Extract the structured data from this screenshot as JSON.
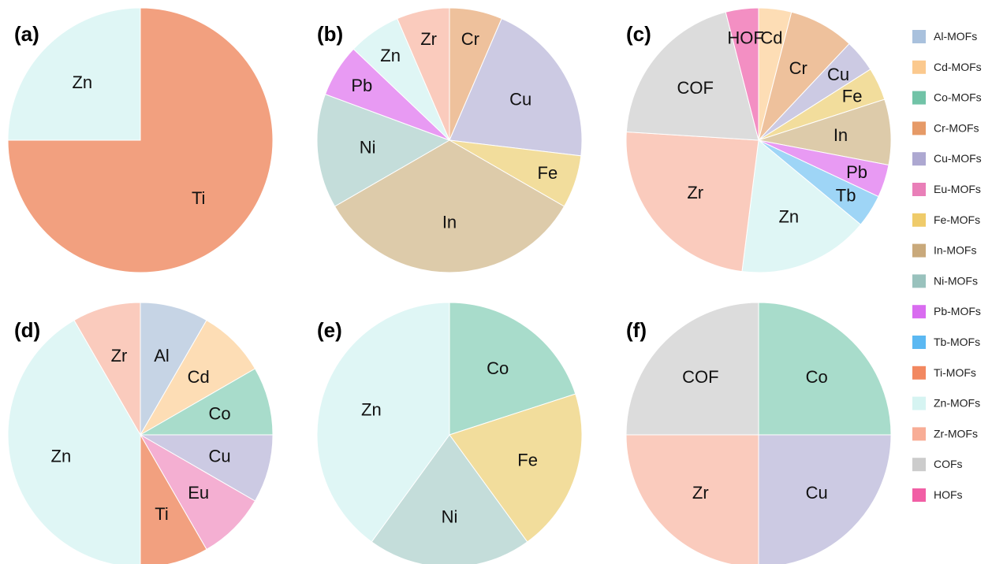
{
  "legend": [
    {
      "label": "Al-MOFs",
      "color": "#A9C1DD"
    },
    {
      "label": "Cd-MOFs",
      "color": "#FBC98E"
    },
    {
      "label": "Co-MOFs",
      "color": "#71C3A7"
    },
    {
      "label": "Cr-MOFs",
      "color": "#E69A67"
    },
    {
      "label": "Cu-MOFs",
      "color": "#ADA8D1"
    },
    {
      "label": "Eu-MOFs",
      "color": "#E97FB8"
    },
    {
      "label": "Fe-MOFs",
      "color": "#EFCB6A"
    },
    {
      "label": "In-MOFs",
      "color": "#C9A97B"
    },
    {
      "label": "Ni-MOFs",
      "color": "#99C2BD"
    },
    {
      "label": "Pb-MOFs",
      "color": "#D96CF0"
    },
    {
      "label": "Tb-MOFs",
      "color": "#5BB8F2"
    },
    {
      "label": "Ti-MOFs",
      "color": "#F28860"
    },
    {
      "label": "Zn-MOFs",
      "color": "#D6F4F2"
    },
    {
      "label": "Zr-MOFs",
      "color": "#F8AD96"
    },
    {
      "label": "COFs",
      "color": "#CCCCCC"
    },
    {
      "label": "HOFs",
      "color": "#F15FA5"
    }
  ],
  "slice_colors": {
    "Al": "#C6D4E5",
    "Cd": "#FDDDB5",
    "Co": "#A8DCCB",
    "Cr": "#EEC19C",
    "Cu": "#CCCAE3",
    "Eu": "#F4AFD2",
    "Fe": "#F2DD9C",
    "In": "#DDCBAA",
    "Ni": "#C4DDDA",
    "Pb": "#E89AF3",
    "Tb": "#9ED5F6",
    "Ti": "#F2A07F",
    "Zn": "#DFF6F5",
    "Zr": "#FACBBD",
    "COF": "#DCDCDC",
    "HOF": "#F38FC3"
  },
  "chart_data": [
    {
      "type": "pie",
      "title": "(a)",
      "slices": [
        {
          "label": "Ti",
          "color_key": "Ti",
          "value": 75
        },
        {
          "label": "Zn",
          "color_key": "Zn",
          "value": 25
        }
      ]
    },
    {
      "type": "pie",
      "title": "(b)",
      "slices": [
        {
          "label": "Cr",
          "color_key": "Cr",
          "value": 6
        },
        {
          "label": "Cu",
          "color_key": "Cu",
          "value": 19
        },
        {
          "label": "Fe",
          "color_key": "Fe",
          "value": 6
        },
        {
          "label": "In",
          "color_key": "In",
          "value": 31
        },
        {
          "label": "Ni",
          "color_key": "Ni",
          "value": 13
        },
        {
          "label": "Pb",
          "color_key": "Pb",
          "value": 6
        },
        {
          "label": "Zn",
          "color_key": "Zn",
          "value": 6
        },
        {
          "label": "Zr",
          "color_key": "Zr",
          "value": 6
        }
      ]
    },
    {
      "type": "pie",
      "title": "(c)",
      "slices": [
        {
          "label": "Cd",
          "color_key": "Cd",
          "value": 4
        },
        {
          "label": "Cr",
          "color_key": "Cr",
          "value": 8
        },
        {
          "label": "Cu",
          "color_key": "Cu",
          "value": 4
        },
        {
          "label": "Fe",
          "color_key": "Fe",
          "value": 4
        },
        {
          "label": "In",
          "color_key": "In",
          "value": 8
        },
        {
          "label": "Pb",
          "color_key": "Pb",
          "value": 4
        },
        {
          "label": "Tb",
          "color_key": "Tb",
          "value": 4
        },
        {
          "label": "Zn",
          "color_key": "Zn",
          "value": 16
        },
        {
          "label": "Zr",
          "color_key": "Zr",
          "value": 24
        },
        {
          "label": "COF",
          "color_key": "COF",
          "value": 20
        },
        {
          "label": "HOF",
          "color_key": "HOF",
          "value": 4
        }
      ]
    },
    {
      "type": "pie",
      "title": "(d)",
      "slices": [
        {
          "label": "Al",
          "color_key": "Al",
          "value": 1
        },
        {
          "label": "Cd",
          "color_key": "Cd",
          "value": 1
        },
        {
          "label": "Co",
          "color_key": "Co",
          "value": 1
        },
        {
          "label": "Cu",
          "color_key": "Cu",
          "value": 1
        },
        {
          "label": "Eu",
          "color_key": "Eu",
          "value": 1
        },
        {
          "label": "Ti",
          "color_key": "Ti",
          "value": 1
        },
        {
          "label": "Zn",
          "color_key": "Zn",
          "value": 5
        },
        {
          "label": "Zr",
          "color_key": "Zr",
          "value": 1
        }
      ]
    },
    {
      "type": "pie",
      "title": "(e)",
      "slices": [
        {
          "label": "Co",
          "color_key": "Co",
          "value": 2
        },
        {
          "label": "Fe",
          "color_key": "Fe",
          "value": 2
        },
        {
          "label": "Ni",
          "color_key": "Ni",
          "value": 2
        },
        {
          "label": "Zn",
          "color_key": "Zn",
          "value": 4
        }
      ]
    },
    {
      "type": "pie",
      "title": "(f)",
      "slices": [
        {
          "label": "Co",
          "color_key": "Co",
          "value": 1
        },
        {
          "label": "Cu",
          "color_key": "Cu",
          "value": 1
        },
        {
          "label": "Zr",
          "color_key": "Zr",
          "value": 1
        },
        {
          "label": "COF",
          "color_key": "COF",
          "value": 1
        }
      ]
    }
  ]
}
